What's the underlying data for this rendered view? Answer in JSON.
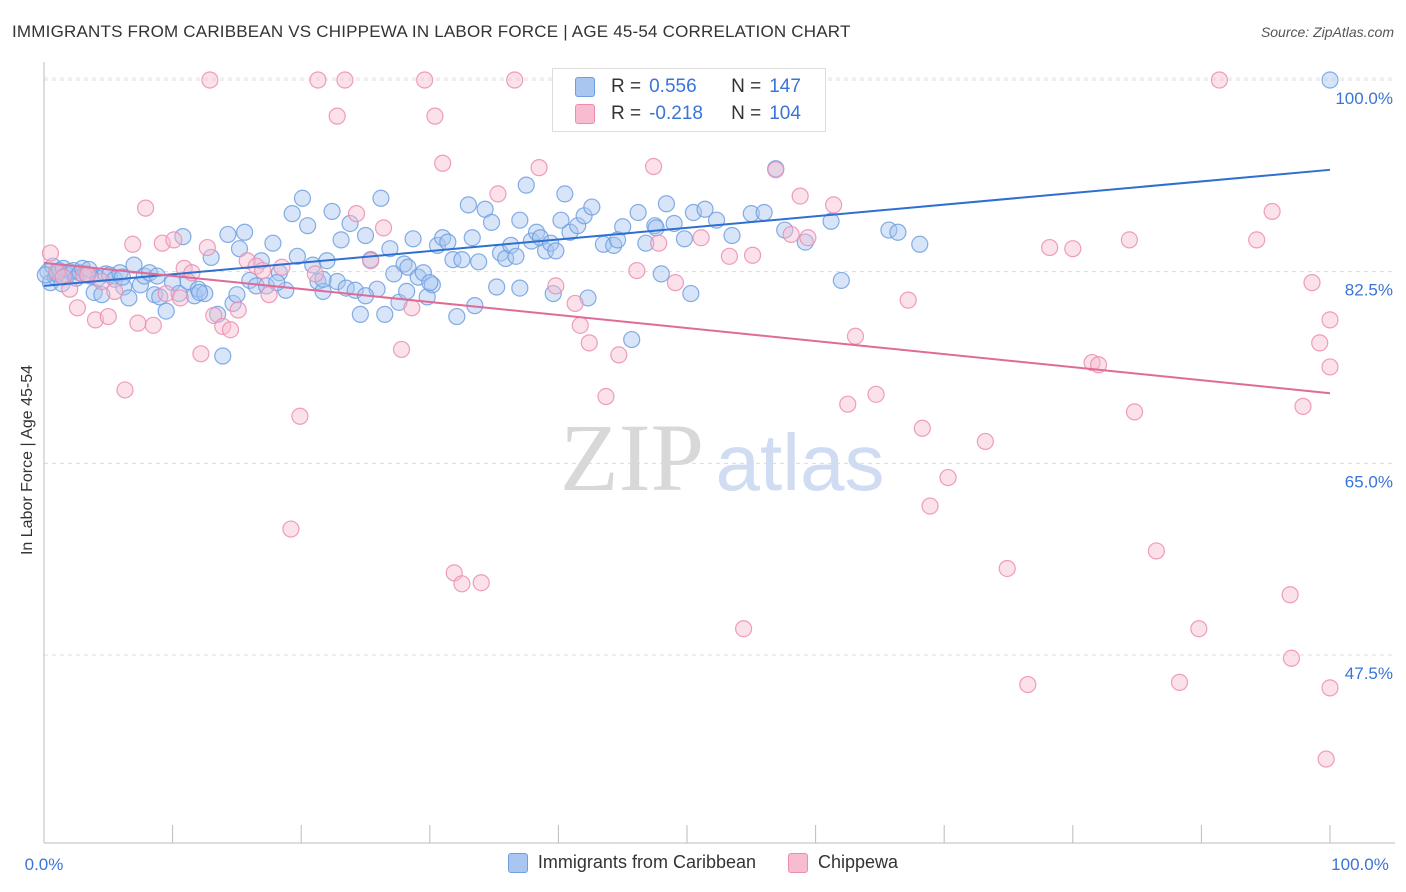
{
  "header": {
    "title": "IMMIGRANTS FROM CARIBBEAN VS CHIPPEWA IN LABOR FORCE | AGE 45-54 CORRELATION CHART",
    "source": "Source: ZipAtlas.com"
  },
  "watermark": {
    "zip": "ZIP",
    "atlas": "atlas"
  },
  "legend": {
    "rows": [
      {
        "r_label": "R =",
        "r_value": "0.556",
        "n_label": "N =",
        "n_value": "147",
        "color": "#a9c6f0",
        "border": "#6e9fe2"
      },
      {
        "r_label": "R =",
        "r_value": "-0.218",
        "n_label": "N =",
        "n_value": "104",
        "color": "#f7bcd0",
        "border": "#ec8db0"
      }
    ]
  },
  "chart_data": {
    "type": "scatter",
    "title": "IMMIGRANTS FROM CARIBBEAN VS CHIPPEWA IN LABOR FORCE | AGE 45-54 CORRELATION CHART",
    "xlabel": "",
    "ylabel": "In Labor Force | Age 45-54",
    "xlim": [
      0,
      100
    ],
    "ylim": [
      32,
      102
    ],
    "x_tick_labels": [
      "0.0%",
      "100.0%"
    ],
    "y_ticks": [
      47.5,
      65.0,
      82.5,
      100.0
    ],
    "y_tick_labels": [
      "47.5%",
      "65.0%",
      "82.5%",
      "100.0%"
    ],
    "grid": true,
    "legend_position": "top-center",
    "series": [
      {
        "name": "Immigrants from Caribbean",
        "color": "#6e9fe2",
        "fill": "#a9c6f0",
        "trend": {
          "x": [
            0,
            100
          ],
          "y": [
            81.2,
            91.8
          ],
          "color": "#2f6fd0"
        },
        "points": [
          [
            0.3,
            82.5
          ],
          [
            0.5,
            81.5
          ],
          [
            0.7,
            83
          ],
          [
            0.9,
            82
          ],
          [
            1.0,
            82.3
          ],
          [
            1.2,
            82.6
          ],
          [
            1.5,
            82.8
          ],
          [
            1.8,
            82.2
          ],
          [
            2.0,
            82.5
          ],
          [
            2.3,
            82.6
          ],
          [
            2.5,
            81.9
          ],
          [
            2.8,
            82.4
          ],
          [
            3.0,
            82.8
          ],
          [
            3.3,
            82.3
          ],
          [
            3.6,
            82.1
          ],
          [
            3.9,
            80.6
          ],
          [
            4.2,
            81.9
          ],
          [
            4.5,
            80.4
          ],
          [
            4.8,
            82.3
          ],
          [
            5.1,
            82.2
          ],
          [
            5.5,
            81.8
          ],
          [
            5.9,
            82.4
          ],
          [
            6.2,
            81.1
          ],
          [
            6.6,
            80.1
          ],
          [
            7.0,
            83.1
          ],
          [
            7.5,
            81.3
          ],
          [
            7.8,
            82.1
          ],
          [
            8.2,
            82.4
          ],
          [
            8.6,
            80.4
          ],
          [
            9.0,
            80.2
          ],
          [
            9.5,
            78.9
          ],
          [
            10.0,
            81.5
          ],
          [
            10.5,
            80.5
          ],
          [
            10.8,
            85.7
          ],
          [
            11.2,
            81.6
          ],
          [
            11.7,
            80.3
          ],
          [
            12.0,
            80.9
          ],
          [
            12.5,
            80.5
          ],
          [
            13.0,
            83.8
          ],
          [
            13.5,
            78.6
          ],
          [
            13.9,
            74.8
          ],
          [
            14.3,
            85.9
          ],
          [
            14.7,
            79.6
          ],
          [
            15.2,
            84.6
          ],
          [
            15.6,
            86.1
          ],
          [
            16.0,
            81.7
          ],
          [
            16.5,
            81.2
          ],
          [
            16.9,
            83.5
          ],
          [
            17.3,
            81.2
          ],
          [
            17.8,
            85.1
          ],
          [
            18.3,
            82.4
          ],
          [
            18.8,
            80.8
          ],
          [
            19.3,
            87.8
          ],
          [
            19.7,
            83.9
          ],
          [
            20.1,
            89.2
          ],
          [
            20.5,
            86.7
          ],
          [
            20.9,
            83.1
          ],
          [
            21.3,
            81.6
          ],
          [
            21.7,
            80.7
          ],
          [
            22.0,
            83.5
          ],
          [
            22.4,
            88.0
          ],
          [
            22.8,
            81.6
          ],
          [
            23.1,
            85.4
          ],
          [
            23.5,
            81.0
          ],
          [
            23.8,
            86.9
          ],
          [
            24.2,
            80.8
          ],
          [
            24.6,
            78.6
          ],
          [
            25.0,
            85.8
          ],
          [
            25.4,
            83.6
          ],
          [
            25.9,
            80.9
          ],
          [
            26.2,
            89.2
          ],
          [
            26.5,
            78.6
          ],
          [
            26.9,
            84.6
          ],
          [
            27.2,
            82.3
          ],
          [
            27.6,
            79.7
          ],
          [
            28.0,
            83.2
          ],
          [
            28.3,
            82.9
          ],
          [
            28.7,
            85.5
          ],
          [
            29.1,
            82.0
          ],
          [
            29.5,
            82.4
          ],
          [
            29.8,
            80.2
          ],
          [
            30.2,
            81.3
          ],
          [
            30.6,
            84.9
          ],
          [
            31.0,
            85.6
          ],
          [
            31.4,
            85.2
          ],
          [
            31.8,
            83.6
          ],
          [
            32.1,
            78.4
          ],
          [
            32.5,
            83.6
          ],
          [
            33.0,
            88.6
          ],
          [
            33.3,
            85.6
          ],
          [
            33.8,
            83.4
          ],
          [
            34.3,
            88.2
          ],
          [
            34.8,
            87.0
          ],
          [
            35.2,
            81.1
          ],
          [
            35.5,
            84.2
          ],
          [
            35.9,
            83.7
          ],
          [
            36.3,
            84.9
          ],
          [
            36.7,
            83.9
          ],
          [
            37.0,
            87.2
          ],
          [
            37.5,
            90.4
          ],
          [
            37.9,
            85.3
          ],
          [
            38.3,
            86.1
          ],
          [
            38.6,
            85.6
          ],
          [
            39.0,
            84.4
          ],
          [
            39.4,
            85.1
          ],
          [
            39.8,
            84.4
          ],
          [
            40.2,
            87.2
          ],
          [
            40.5,
            89.6
          ],
          [
            40.9,
            86.1
          ],
          [
            41.5,
            86.7
          ],
          [
            42.0,
            87.6
          ],
          [
            42.6,
            88.4
          ],
          [
            43.5,
            85.0
          ],
          [
            44.3,
            84.9
          ],
          [
            45.0,
            86.6
          ],
          [
            45.7,
            76.3
          ],
          [
            46.2,
            87.9
          ],
          [
            46.8,
            85.1
          ],
          [
            47.5,
            86.7
          ],
          [
            48.0,
            82.3
          ],
          [
            48.4,
            88.7
          ],
          [
            49.0,
            86.9
          ],
          [
            49.8,
            85.5
          ],
          [
            50.5,
            87.9
          ],
          [
            51.4,
            88.2
          ],
          [
            52.3,
            87.2
          ],
          [
            53.5,
            85.8
          ],
          [
            55.0,
            87.8
          ],
          [
            56.0,
            87.9
          ],
          [
            56.9,
            91.9
          ],
          [
            57.6,
            86.3
          ],
          [
            59.2,
            85.2
          ],
          [
            61.2,
            87.1
          ],
          [
            62.0,
            81.7
          ],
          [
            65.7,
            86.3
          ],
          [
            66.4,
            86.1
          ],
          [
            68.1,
            85.0
          ],
          [
            50.3,
            80.5
          ],
          [
            47.6,
            86.5
          ],
          [
            44.6,
            85.4
          ],
          [
            42.3,
            80.1
          ],
          [
            39.6,
            80.5
          ],
          [
            37.0,
            81.0
          ],
          [
            33.5,
            79.4
          ],
          [
            30.0,
            81.5
          ],
          [
            28.2,
            80.7
          ],
          [
            25.0,
            80.3
          ],
          [
            21.7,
            81.8
          ],
          [
            18.1,
            81.5
          ],
          [
            15.0,
            80.4
          ],
          [
            12.1,
            80.6
          ],
          [
            8.8,
            82.1
          ],
          [
            6.1,
            82.0
          ],
          [
            3.5,
            82.7
          ],
          [
            1.4,
            81.4
          ],
          [
            100.0,
            100.0
          ],
          [
            0.1,
            82.2
          ]
        ]
      },
      {
        "name": "Chippewa",
        "color": "#ec8db0",
        "fill": "#f7bcd0",
        "trend": {
          "x": [
            0,
            100
          ],
          "y": [
            83.3,
            71.4
          ],
          "color": "#e06b97"
        },
        "points": [
          [
            0.5,
            84.2
          ],
          [
            1.0,
            82.5
          ],
          [
            1.5,
            82.0
          ],
          [
            2.0,
            80.9
          ],
          [
            2.6,
            79.2
          ],
          [
            3.1,
            82.2
          ],
          [
            3.4,
            82.2
          ],
          [
            4.0,
            78.1
          ],
          [
            4.5,
            81.6
          ],
          [
            5.0,
            78.4
          ],
          [
            5.5,
            80.7
          ],
          [
            6.3,
            71.7
          ],
          [
            6.9,
            85.0
          ],
          [
            7.3,
            77.8
          ],
          [
            7.9,
            88.3
          ],
          [
            8.5,
            77.6
          ],
          [
            9.2,
            85.1
          ],
          [
            9.5,
            80.5
          ],
          [
            10.1,
            85.4
          ],
          [
            10.6,
            80.1
          ],
          [
            10.9,
            82.8
          ],
          [
            11.5,
            82.4
          ],
          [
            12.2,
            75.0
          ],
          [
            12.7,
            84.7
          ],
          [
            13.2,
            78.5
          ],
          [
            13.9,
            77.5
          ],
          [
            14.5,
            77.2
          ],
          [
            15.1,
            79.0
          ],
          [
            15.8,
            83.5
          ],
          [
            16.5,
            83.0
          ],
          [
            17.0,
            82.6
          ],
          [
            17.5,
            80.4
          ],
          [
            18.5,
            82.9
          ],
          [
            19.2,
            59.0
          ],
          [
            19.9,
            69.3
          ],
          [
            21.1,
            82.3
          ],
          [
            22.8,
            96.7
          ],
          [
            24.3,
            87.8
          ],
          [
            25.4,
            83.5
          ],
          [
            26.4,
            86.5
          ],
          [
            27.8,
            75.4
          ],
          [
            28.6,
            79.2
          ],
          [
            29.6,
            100.0
          ],
          [
            30.4,
            96.7
          ],
          [
            31.0,
            92.4
          ],
          [
            31.9,
            55.0
          ],
          [
            32.5,
            54.0
          ],
          [
            34.0,
            54.1
          ],
          [
            35.3,
            89.6
          ],
          [
            36.6,
            100.0
          ],
          [
            38.5,
            92.0
          ],
          [
            39.8,
            81.2
          ],
          [
            41.3,
            79.6
          ],
          [
            41.7,
            77.6
          ],
          [
            42.4,
            76.0
          ],
          [
            43.7,
            71.1
          ],
          [
            44.7,
            74.9
          ],
          [
            46.1,
            82.6
          ],
          [
            47.4,
            92.1
          ],
          [
            47.8,
            85.1
          ],
          [
            49.1,
            81.5
          ],
          [
            51.1,
            85.6
          ],
          [
            53.3,
            83.9
          ],
          [
            54.4,
            49.9
          ],
          [
            55.1,
            84.0
          ],
          [
            56.9,
            91.8
          ],
          [
            58.1,
            85.9
          ],
          [
            58.8,
            89.4
          ],
          [
            59.4,
            85.6
          ],
          [
            61.4,
            88.6
          ],
          [
            62.5,
            70.4
          ],
          [
            63.1,
            76.6
          ],
          [
            64.7,
            71.3
          ],
          [
            67.2,
            79.9
          ],
          [
            68.3,
            68.2
          ],
          [
            68.9,
            61.1
          ],
          [
            70.3,
            63.7
          ],
          [
            73.2,
            67.0
          ],
          [
            74.9,
            55.4
          ],
          [
            76.5,
            44.8
          ],
          [
            78.2,
            84.7
          ],
          [
            80.0,
            84.6
          ],
          [
            81.5,
            74.2
          ],
          [
            82.0,
            74.0
          ],
          [
            84.4,
            85.4
          ],
          [
            84.8,
            69.7
          ],
          [
            86.5,
            57.0
          ],
          [
            88.3,
            45.0
          ],
          [
            89.8,
            49.9
          ],
          [
            91.4,
            100.0
          ],
          [
            94.3,
            85.4
          ],
          [
            95.5,
            88.0
          ],
          [
            96.9,
            53.0
          ],
          [
            97.9,
            70.2
          ],
          [
            98.6,
            81.5
          ],
          [
            99.2,
            76.0
          ],
          [
            99.7,
            38.0
          ],
          [
            100.0,
            73.8
          ],
          [
            100.0,
            78.1
          ],
          [
            100.0,
            44.5
          ],
          [
            97.0,
            47.2
          ],
          [
            12.9,
            100.0
          ],
          [
            21.3,
            100.0
          ],
          [
            23.4,
            100.0
          ]
        ]
      }
    ]
  }
}
